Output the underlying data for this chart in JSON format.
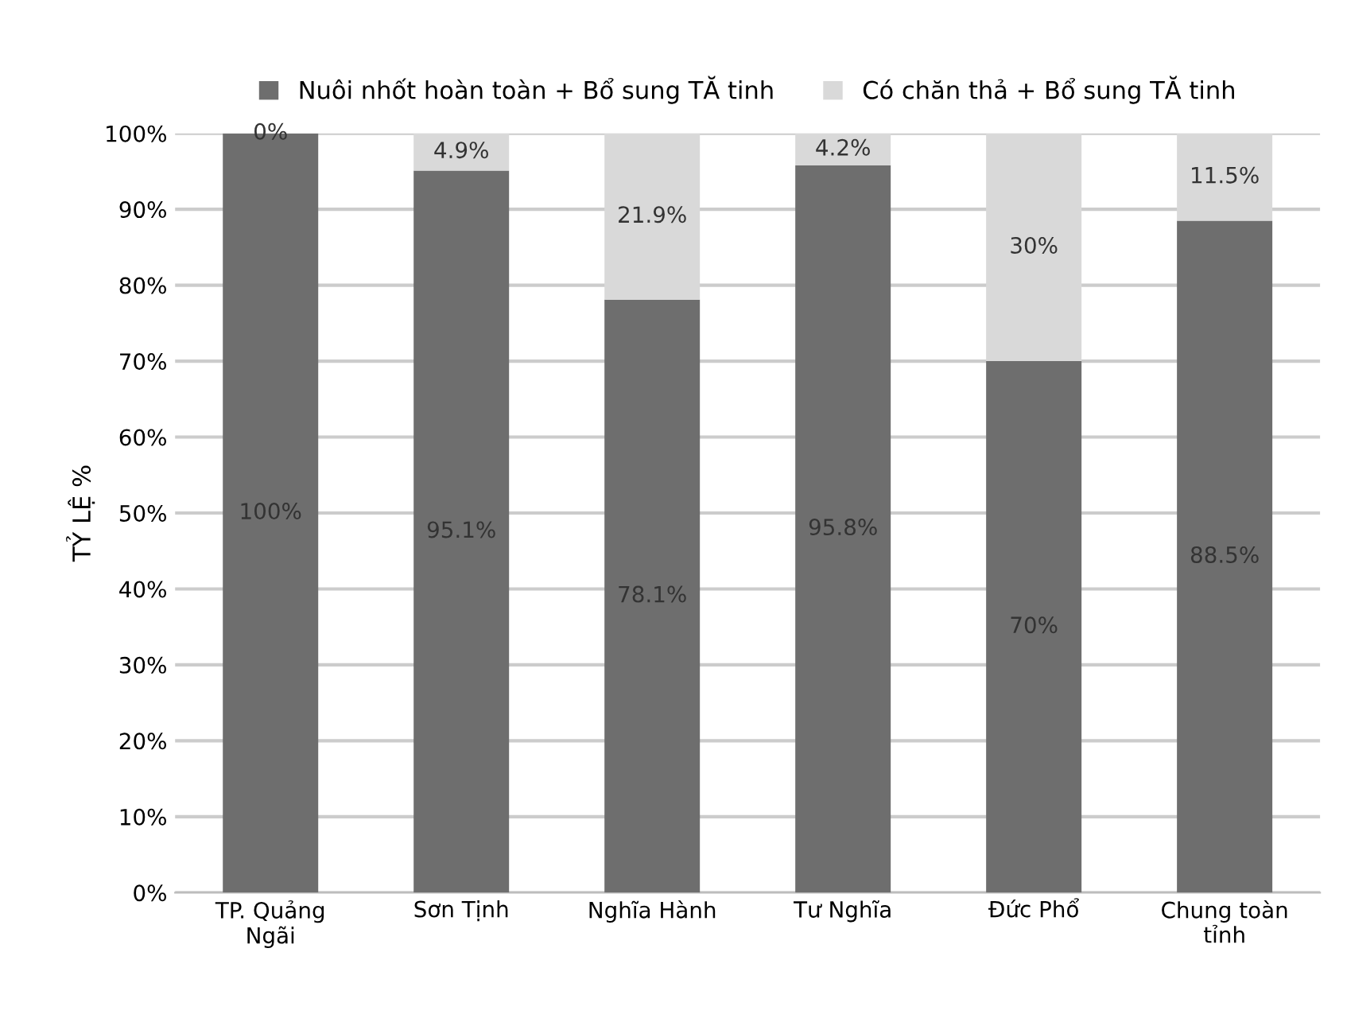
{
  "chart_data": {
    "type": "bar",
    "stacked": true,
    "ylabel": "TỶ LỆ %",
    "categories": [
      "TP. Quảng\nNgãi",
      "Sơn Tịnh",
      "Nghĩa Hành",
      "Tư Nghĩa",
      "Đức Phổ",
      "Chung toàn\ntỉnh"
    ],
    "series": [
      {
        "name": "Nuôi nhốt hoàn toàn + Bổ sung TĂ tinh",
        "color": "#6e6e6e",
        "values": [
          100,
          95.1,
          78.1,
          95.8,
          70,
          88.5
        ],
        "value_labels": [
          "100%",
          "95.1%",
          "78.1%",
          "95.8%",
          "70%",
          "88.5%"
        ]
      },
      {
        "name": "Có chăn thả + Bổ sung TĂ tinh",
        "color": "#d9d9d9",
        "values": [
          0,
          4.9,
          21.9,
          4.2,
          30,
          11.5
        ],
        "value_labels": [
          "0%",
          "4.9%",
          "21.9%",
          "4.2%",
          "30%",
          "11.5%"
        ]
      }
    ],
    "ylim": [
      0,
      100
    ],
    "yticks": [
      {
        "value": 0,
        "label": "0%"
      },
      {
        "value": 10,
        "label": "10%"
      },
      {
        "value": 20,
        "label": "20%"
      },
      {
        "value": 30,
        "label": "30%"
      },
      {
        "value": 40,
        "label": "40%"
      },
      {
        "value": 50,
        "label": "50%"
      },
      {
        "value": 60,
        "label": "60%"
      },
      {
        "value": 70,
        "label": "70%"
      },
      {
        "value": 80,
        "label": "80%"
      },
      {
        "value": 90,
        "label": "90%"
      },
      {
        "value": 100,
        "label": "100%"
      }
    ],
    "grid": "y",
    "legend": "top"
  }
}
